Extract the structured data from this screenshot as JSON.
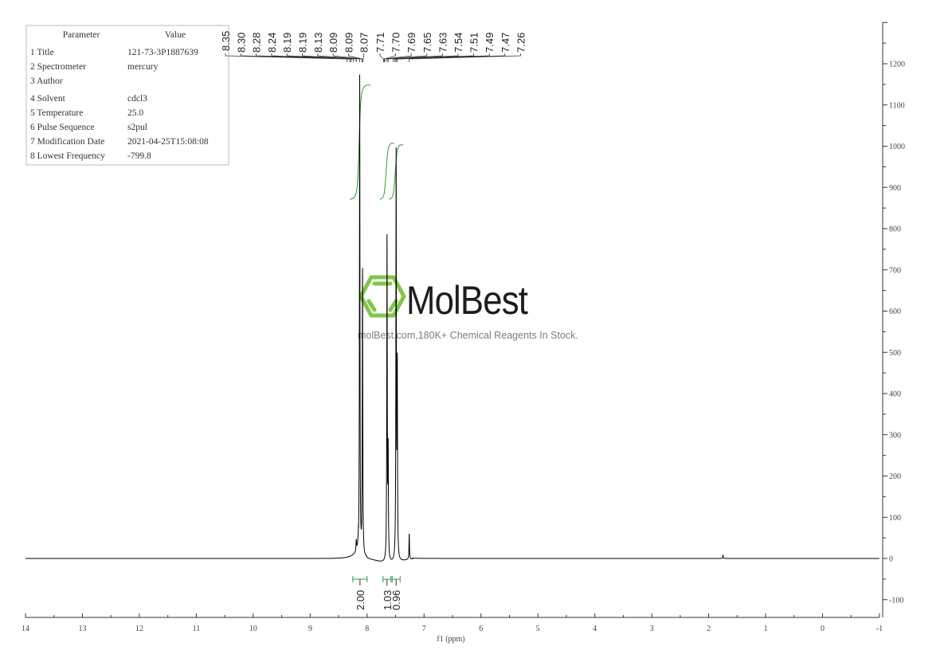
{
  "parameters": {
    "headers": [
      "Parameter",
      "Value"
    ],
    "rows": [
      {
        "name": "1 Title",
        "value": "121-73-3P1887639"
      },
      {
        "name": "2 Spectrometer",
        "value": "mercury"
      },
      {
        "name": "3 Author",
        "value": ""
      },
      {
        "name": "4 Solvent",
        "value": "cdcl3"
      },
      {
        "name": "5 Temperature",
        "value": "25.0"
      },
      {
        "name": "6 Pulse Sequence",
        "value": "s2pul"
      },
      {
        "name": "7 Modification Date",
        "value": "2021-04-25T15:08:08"
      },
      {
        "name": "8 Lowest Frequency",
        "value": "-799.8"
      }
    ]
  },
  "watermark": {
    "brand": "MolBest",
    "tagline": "molBest.com,180K+ Chemical Reagents In Stock.",
    "logo_color": "#7dc242"
  },
  "chart_data": {
    "type": "line",
    "title": "",
    "xlabel": "f1 (ppm)",
    "ylabel": "",
    "xlim": [
      14,
      -1
    ],
    "ylim": [
      -150,
      1300
    ],
    "x_reversed": true,
    "y_axis_side": "right",
    "grid": false,
    "x_ticks": [
      14,
      13,
      12,
      11,
      10,
      9,
      8,
      7,
      6,
      5,
      4,
      3,
      2,
      1,
      0,
      -1
    ],
    "y_ticks": [
      -100,
      0,
      100,
      200,
      300,
      400,
      500,
      600,
      700,
      800,
      900,
      1000,
      1100,
      1200
    ],
    "series_color": "#000000",
    "integral_color": "#2e9e3a",
    "peaks": [
      {
        "ppm": 8.19,
        "intensity": 25
      },
      {
        "ppm": 8.13,
        "intensity": 1178
      },
      {
        "ppm": 8.08,
        "intensity": 700
      },
      {
        "ppm": 7.65,
        "intensity": 790
      },
      {
        "ppm": 7.63,
        "intensity": 260
      },
      {
        "ppm": 7.49,
        "intensity": 980
      },
      {
        "ppm": 7.47,
        "intensity": 452
      },
      {
        "ppm": 7.26,
        "intensity": 63
      },
      {
        "ppm": 1.75,
        "intensity": 8
      }
    ],
    "peak_labels": [
      "8.35",
      "8.30",
      "8.28",
      "8.24",
      "8.19",
      "8.19",
      "8.13",
      "8.09",
      "8.09",
      "8.07",
      "7.71",
      "7.70",
      "7.69",
      "7.65",
      "7.63",
      "7.54",
      "7.51",
      "7.49",
      "7.47",
      "7.26"
    ],
    "integrals": [
      {
        "from": 8.25,
        "to": 8.0,
        "value": "2.00"
      },
      {
        "from": 7.72,
        "to": 7.58,
        "value": "1.03"
      },
      {
        "from": 7.56,
        "to": 7.42,
        "value": "0.96"
      }
    ]
  }
}
